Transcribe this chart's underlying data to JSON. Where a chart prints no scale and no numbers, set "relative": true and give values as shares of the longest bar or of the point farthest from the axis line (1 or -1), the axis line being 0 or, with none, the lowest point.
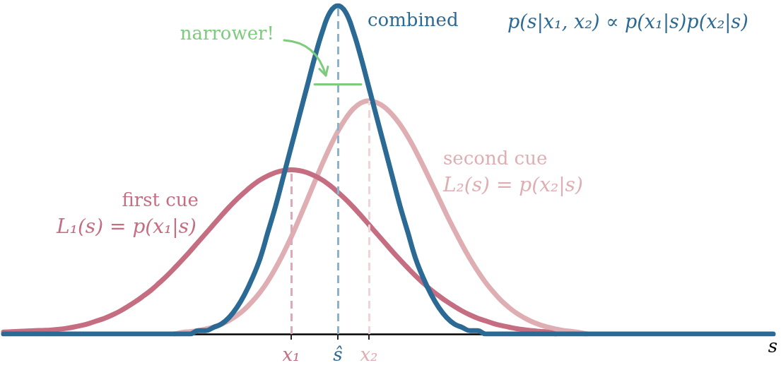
{
  "chart_data": {
    "type": "line",
    "relative": true,
    "xlabel": "s",
    "categories": [
      null,
      null,
      null,
      null,
      null,
      null,
      null,
      null,
      null,
      null,
      null,
      null,
      null,
      null,
      null,
      null,
      null,
      null,
      null,
      null,
      null,
      null,
      null,
      null,
      null,
      null,
      null,
      null,
      null,
      null,
      null,
      null,
      null,
      null,
      null,
      null,
      null,
      "x₁",
      null,
      null,
      null,
      null,
      null,
      "ŝ",
      null,
      null,
      null,
      "x₂",
      null,
      null,
      null,
      null,
      null,
      null,
      null,
      null,
      null,
      null,
      null,
      null,
      null,
      null,
      null,
      null,
      null,
      null,
      null,
      null,
      null,
      null,
      null,
      null,
      null,
      null,
      null,
      null,
      null,
      null,
      null,
      null,
      null,
      null,
      null,
      null,
      null,
      null,
      null,
      null,
      null,
      null,
      null,
      null,
      null,
      null,
      null,
      null,
      null,
      null,
      null,
      null
    ],
    "series": [
      {
        "name": "first cue",
        "color": "#c56d81",
        "values": [
          0.006,
          0.007,
          0.008,
          0.009,
          0.01,
          0.011,
          0.012,
          0.014,
          0.017,
          0.021,
          0.026,
          0.032,
          0.04,
          0.048,
          0.058,
          0.07,
          0.084,
          0.099,
          0.116,
          0.134,
          0.155,
          0.177,
          0.201,
          0.226,
          0.252,
          0.279,
          0.306,
          0.333,
          0.36,
          0.386,
          0.41,
          0.432,
          0.452,
          0.469,
          0.482,
          0.492,
          0.498,
          0.5,
          0.498,
          0.492,
          0.482,
          0.469,
          0.452,
          0.432,
          0.41,
          0.386,
          0.36,
          0.333,
          0.306,
          0.279,
          0.252,
          0.226,
          0.201,
          0.177,
          0.155,
          0.134,
          0.116,
          0.099,
          0.084,
          0.07,
          0.058,
          0.048,
          0.04,
          0.032,
          0.026,
          0.021,
          0.016,
          0.013,
          0.01,
          0.008,
          0.006,
          0,
          null,
          null,
          null,
          null,
          null,
          null,
          null,
          null,
          null,
          null,
          null,
          null,
          null,
          null,
          null,
          null,
          null,
          null,
          null,
          null,
          null,
          null,
          null,
          null,
          null,
          null,
          null,
          null
        ]
      },
      {
        "name": "second cue",
        "color": "#dfaeb2",
        "values": [
          null,
          null,
          null,
          null,
          null,
          null,
          null,
          null,
          null,
          null,
          null,
          null,
          null,
          null,
          null,
          null,
          null,
          null,
          null,
          null,
          null,
          null,
          0,
          0.005,
          0.007,
          0.01,
          0.015,
          0.021,
          0.03,
          0.041,
          0.056,
          0.075,
          0.099,
          0.127,
          0.161,
          0.201,
          0.246,
          0.295,
          0.349,
          0.405,
          0.462,
          0.518,
          0.57,
          0.617,
          0.656,
          0.686,
          0.704,
          0.71,
          0.705,
          0.691,
          0.668,
          0.638,
          0.601,
          0.558,
          0.511,
          0.462,
          0.413,
          0.363,
          0.316,
          0.271,
          0.229,
          0.191,
          0.157,
          0.128,
          0.102,
          0.081,
          0.063,
          0.049,
          0.037,
          0.028,
          0.021,
          0.015,
          0.011,
          0.008,
          0.005,
          0,
          null,
          null,
          null,
          null,
          null,
          null,
          null,
          null,
          null,
          null,
          null,
          null,
          null,
          null,
          null,
          null,
          null,
          null,
          null,
          null,
          null,
          null,
          null,
          null
        ]
      },
      {
        "name": "combined",
        "color": "#2a6a94",
        "values": [
          0,
          0,
          0,
          0,
          0,
          0,
          0,
          0,
          0,
          0,
          0,
          0,
          0,
          0,
          0,
          0,
          0,
          0,
          0,
          0,
          0,
          0,
          0,
          0,
          0,
          0.01,
          0.01,
          0.02,
          0.03,
          0.05,
          0.08,
          0.12,
          0.17,
          0.23,
          0.31,
          0.39,
          0.48,
          0.57,
          0.66,
          0.75,
          0.84,
          0.92,
          0.98,
          1.0,
          0.98,
          0.92,
          0.84,
          0.75,
          0.66,
          0.57,
          0.48,
          0.39,
          0.31,
          0.23,
          0.17,
          0.12,
          0.08,
          0.05,
          0.03,
          0.02,
          0.01,
          0.01,
          0,
          0,
          0,
          0,
          0,
          0,
          0,
          0,
          0,
          0,
          0,
          0,
          0,
          0,
          0,
          0,
          0,
          0,
          0,
          0,
          0,
          0,
          0,
          0,
          0,
          0,
          0,
          0,
          0,
          0,
          0,
          0,
          0,
          0,
          0,
          0,
          0,
          0
        ]
      },
      {
        "color": "#7dcb7d",
        "values": [
          null,
          null,
          null,
          null,
          null,
          null,
          null,
          null,
          null,
          null,
          null,
          null,
          null,
          null,
          null,
          null,
          null,
          null,
          null,
          null,
          null,
          null,
          null,
          null,
          null,
          null,
          null,
          null,
          null,
          null,
          null,
          null,
          null,
          null,
          null,
          null,
          null,
          null,
          null,
          null,
          0.76,
          0.76,
          0.76,
          0.76,
          0.76,
          0.76,
          0.76,
          null,
          null,
          null,
          null,
          null,
          null,
          null,
          null,
          null,
          null,
          null,
          null,
          null,
          null,
          null,
          null,
          null,
          null,
          null,
          null,
          null,
          null,
          null,
          null,
          null,
          null,
          null,
          null,
          null,
          null,
          null,
          null,
          null,
          null,
          null,
          null,
          null,
          null,
          null,
          null,
          null,
          null,
          null,
          null,
          null,
          null,
          null,
          null,
          null,
          null,
          null,
          null,
          null
        ]
      }
    ],
    "annotations": [
      "L₁(s) = p(x₁|s)",
      "L₂(s) = p(x₂|s)",
      "p(s|x₁, x₂) ∝ p(x₁|s)p(x₂|s)",
      "narrower!"
    ],
    "ref_lines": [
      {
        "axis": "x",
        "value": "x₁",
        "color": "#e2a7b5",
        "line_style": "dashed"
      },
      {
        "axis": "x",
        "value": "ŝ",
        "color": "#8db2cc",
        "line_style": "dashed"
      },
      {
        "axis": "x",
        "value": "x₂",
        "color": "#f2d4d7",
        "line_style": "dashed"
      }
    ]
  }
}
